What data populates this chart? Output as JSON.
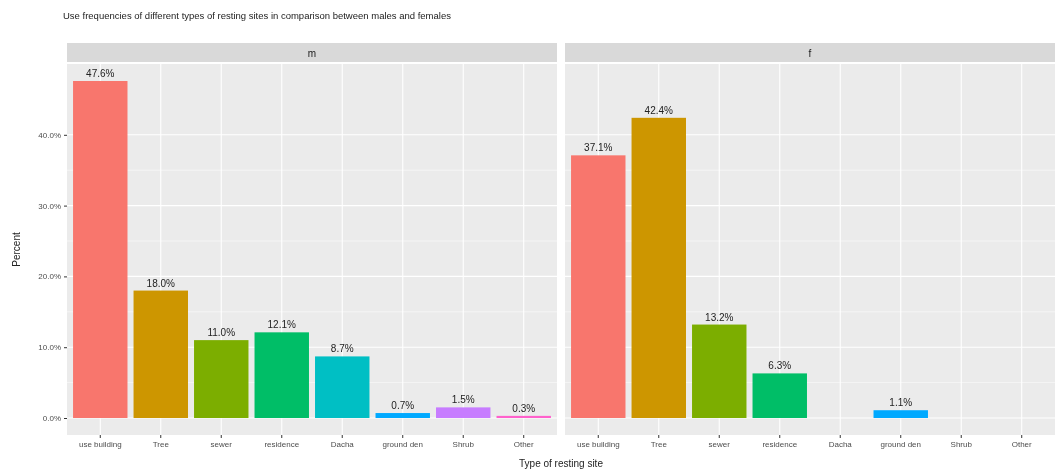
{
  "chart_data": [
    {
      "type": "bar",
      "title": "Use frequencies of different types of resting sites in comparison between males and females",
      "subtitle": "m",
      "xlabel": "Type of resting site",
      "ylabel": "Percent",
      "categories": [
        "use building",
        "Tree",
        "sewer",
        "residence",
        "Dacha",
        "ground den",
        "Shrub",
        "Other"
      ],
      "values": [
        47.6,
        18.0,
        11.0,
        12.1,
        8.7,
        0.7,
        1.5,
        0.3
      ],
      "colors": [
        "#f8766d",
        "#cd9600",
        "#7cae00",
        "#00be67",
        "#00bfc4",
        "#00a9ff",
        "#c77cff",
        "#ff61cc"
      ],
      "value_labels": [
        "47.6%",
        "18.0%",
        "11.0%",
        "12.1%",
        "8.7%",
        "0.7%",
        "1.5%",
        "0.3%"
      ],
      "ylim": [
        -2.4,
        50
      ],
      "yticks": [
        {
          "value": 0,
          "label": "0.0%"
        },
        {
          "value": 10,
          "label": "10.0%"
        },
        {
          "value": 20,
          "label": "20.0%"
        },
        {
          "value": 30,
          "label": "30.0%"
        },
        {
          "value": 40,
          "label": "40.0%"
        }
      ],
      "grid": true
    },
    {
      "type": "bar",
      "subtitle": "f",
      "categories": [
        "use building",
        "Tree",
        "sewer",
        "residence",
        "Dacha",
        "ground den",
        "Shrub",
        "Other"
      ],
      "values": [
        37.1,
        42.4,
        13.2,
        6.3,
        null,
        1.1,
        null,
        null
      ],
      "colors": [
        "#f8766d",
        "#cd9600",
        "#7cae00",
        "#00be67",
        null,
        "#00a9ff",
        null,
        null
      ],
      "value_labels": [
        "37.1%",
        "42.4%",
        "13.2%",
        "6.3%",
        null,
        "1.1%",
        null,
        null
      ],
      "ylim": [
        -2.4,
        50
      ],
      "yticks": [
        {
          "value": 0,
          "label": null
        },
        {
          "value": 10,
          "label": null
        },
        {
          "value": 20,
          "label": null
        },
        {
          "value": 30,
          "label": null
        },
        {
          "value": 40,
          "label": null
        }
      ],
      "grid": true,
      "tick_labels": "x"
    }
  ]
}
